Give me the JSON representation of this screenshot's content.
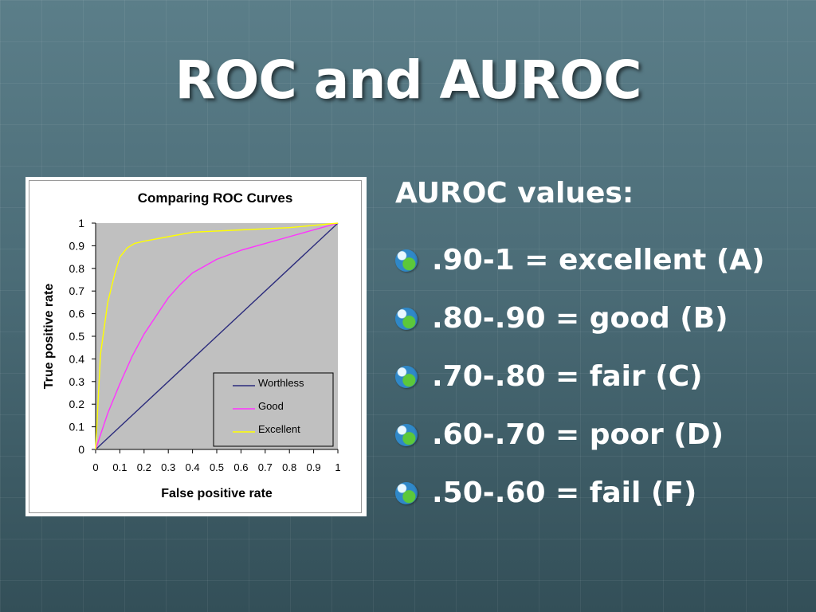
{
  "slide": {
    "title": "ROC and AUROC"
  },
  "bullets": {
    "heading": "AUROC values:",
    "items": [
      ".90-1 = excellent (A)",
      ".80-.90 = good (B)",
      ".70-.80 = fair (C)",
      ".60-.70 = poor (D)",
      ".50-.60 = fail (F)"
    ],
    "icon": "globe-bullet-icon"
  },
  "chart_data": {
    "type": "line",
    "title": "Comparing ROC Curves",
    "xlabel": "False positive rate",
    "ylabel": "True positive rate",
    "xlim": [
      0,
      1
    ],
    "ylim": [
      0,
      1
    ],
    "x_ticks": [
      "0",
      "0.1",
      "0.2",
      "0.3",
      "0.4",
      "0.5",
      "0.6",
      "0.7",
      "0.8",
      "0.9",
      "1"
    ],
    "y_ticks": [
      "0",
      "0.1",
      "0.2",
      "0.3",
      "0.4",
      "0.5",
      "0.6",
      "0.7",
      "0.8",
      "0.9",
      "1"
    ],
    "grid": false,
    "plot_background": "#c0c0c0",
    "legend_position": "bottom-right",
    "series": [
      {
        "name": "Worthless",
        "color": "#2b2b7c",
        "x": [
          0,
          1
        ],
        "y": [
          0,
          1
        ]
      },
      {
        "name": "Good",
        "color": "#ff33ff",
        "x": [
          0,
          0.05,
          0.1,
          0.15,
          0.2,
          0.25,
          0.3,
          0.35,
          0.4,
          0.5,
          0.6,
          0.7,
          0.8,
          0.9,
          1
        ],
        "y": [
          0,
          0.16,
          0.29,
          0.41,
          0.51,
          0.59,
          0.67,
          0.73,
          0.78,
          0.84,
          0.88,
          0.91,
          0.94,
          0.97,
          1
        ]
      },
      {
        "name": "Excellent",
        "color": "#ffff00",
        "x": [
          0,
          0.02,
          0.05,
          0.08,
          0.1,
          0.13,
          0.16,
          0.2,
          0.3,
          0.4,
          0.5,
          0.6,
          0.7,
          0.8,
          0.9,
          1
        ],
        "y": [
          0,
          0.42,
          0.65,
          0.78,
          0.85,
          0.89,
          0.91,
          0.92,
          0.94,
          0.96,
          0.965,
          0.97,
          0.975,
          0.98,
          0.99,
          1
        ]
      }
    ]
  }
}
